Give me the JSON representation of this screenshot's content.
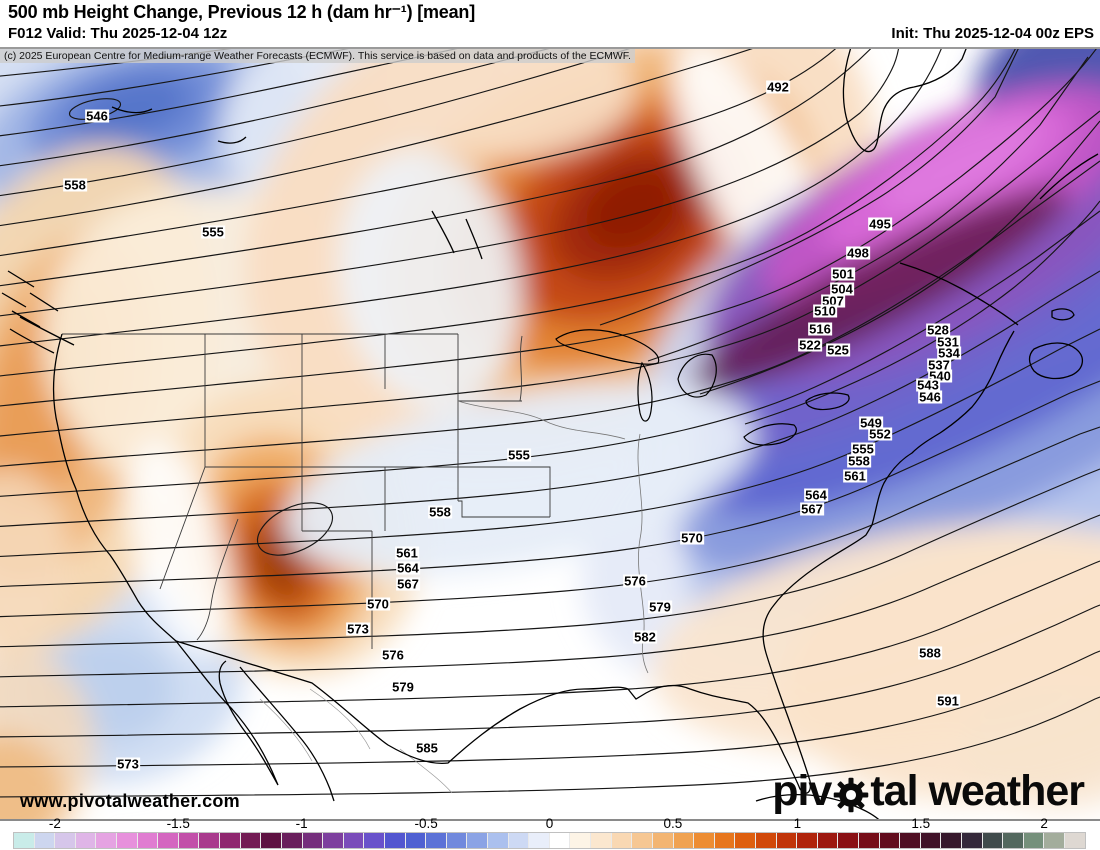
{
  "header": {
    "title": "500 mb Height Change, Previous 12 h (dam hr⁻¹) [mean]",
    "forecast": "F012 Valid: Thu 2025-12-04 12z",
    "init": "Init: Thu 2025-12-04 00z EPS"
  },
  "copyright": "(c) 2025 European Centre for Medium-range Weather Forecasts (ECMWF). This service is based on data and products of the ECMWF.",
  "watermark": "www.pivotalweather.com",
  "logo": {
    "part1": "piv",
    "part2": "tal weather"
  },
  "colorbar": {
    "ticks": [
      "-2",
      "-1.5",
      "-1",
      "-0.5",
      "0",
      "0.5",
      "1",
      "1.5",
      "2"
    ],
    "tick_positions": [
      3.9,
      15.4,
      26.9,
      38.5,
      50,
      61.5,
      73.1,
      84.6,
      96.1
    ],
    "colors": [
      "#c9ece9",
      "#cdd6ef",
      "#d6c6ea",
      "#dfb5e7",
      "#e5a3e2",
      "#e790dc",
      "#e07cd1",
      "#d466c0",
      "#c24fa9",
      "#a93a8d",
      "#8f276f",
      "#731b54",
      "#5e1242",
      "#691e5c",
      "#752e7c",
      "#7d3f9e",
      "#7a4cba",
      "#6952cb",
      "#5356d0",
      "#4f60d2",
      "#5c72d7",
      "#7189dd",
      "#8ba3e5",
      "#abc0ee",
      "#cdd9f4",
      "#e9eefa",
      "#ffffff",
      "#fdf4e6",
      "#fbe7cf",
      "#f9d8b3",
      "#f6c793",
      "#f3b572",
      "#f0a251",
      "#ed8d33",
      "#e7761d",
      "#de5f0f",
      "#d1490a",
      "#c1350a",
      "#b0240c",
      "#9d1810",
      "#8a1014",
      "#760d18",
      "#620c1d",
      "#4f0e23",
      "#401228",
      "#36182c",
      "#34283a",
      "#404b4c",
      "#53685e",
      "#75907b",
      "#a3ad9c",
      "#ded8d2"
    ]
  },
  "contour_labels": [
    [
      546,
      97,
      67
    ],
    [
      558,
      75,
      136
    ],
    [
      555,
      213,
      183
    ],
    [
      492,
      778,
      38
    ],
    [
      495,
      880,
      175
    ],
    [
      498,
      858,
      204
    ],
    [
      501,
      843,
      225
    ],
    [
      504,
      842,
      240
    ],
    [
      507,
      833,
      252
    ],
    [
      510,
      825,
      262
    ],
    [
      516,
      820,
      280
    ],
    [
      522,
      810,
      296
    ],
    [
      525,
      838,
      301
    ],
    [
      528,
      938,
      281
    ],
    [
      531,
      948,
      293
    ],
    [
      534,
      949,
      304
    ],
    [
      537,
      939,
      316
    ],
    [
      540,
      940,
      327
    ],
    [
      543,
      928,
      336
    ],
    [
      546,
      930,
      348
    ],
    [
      549,
      871,
      374
    ],
    [
      552,
      880,
      385
    ],
    [
      555,
      863,
      400
    ],
    [
      558,
      859,
      412
    ],
    [
      561,
      855,
      427
    ],
    [
      564,
      816,
      446
    ],
    [
      567,
      812,
      460
    ],
    [
      555,
      519,
      406
    ],
    [
      558,
      440,
      463
    ],
    [
      561,
      407,
      504
    ],
    [
      564,
      408,
      519
    ],
    [
      567,
      408,
      535
    ],
    [
      570,
      378,
      555
    ],
    [
      573,
      358,
      580
    ],
    [
      576,
      393,
      606
    ],
    [
      579,
      403,
      638
    ],
    [
      585,
      427,
      699
    ],
    [
      573,
      128,
      715
    ],
    [
      570,
      692,
      489
    ],
    [
      576,
      635,
      532
    ],
    [
      579,
      660,
      558
    ],
    [
      582,
      645,
      588
    ],
    [
      588,
      930,
      604
    ],
    [
      591,
      948,
      652
    ]
  ]
}
